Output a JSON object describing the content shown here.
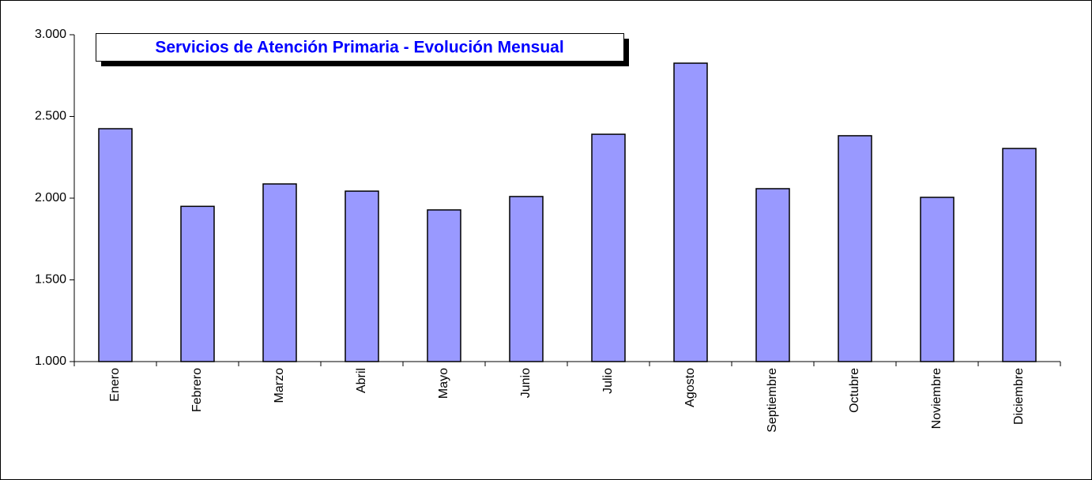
{
  "chart_data": {
    "type": "bar",
    "title": "Servicios de Atención Primaria - Evolución Mensual",
    "categories": [
      "Enero",
      "Febrero",
      "Marzo",
      "Abril",
      "Mayo",
      "Junio",
      "Julio",
      "Agosto",
      "Septiembre",
      "Octubre",
      "Noviembre",
      "Diciembre"
    ],
    "values": [
      2425,
      1950,
      2087,
      2043,
      1928,
      2010,
      2391,
      2826,
      2058,
      2382,
      2005,
      2304
    ],
    "color": "#9999ff",
    "ylim": [
      1000,
      3000
    ],
    "yticks": [
      {
        "value": 1000,
        "label": "1.000"
      },
      {
        "value": 1500,
        "label": "1.500"
      },
      {
        "value": 2000,
        "label": "2.000"
      },
      {
        "value": 2500,
        "label": "2.500"
      },
      {
        "value": 3000,
        "label": "3.000"
      }
    ],
    "grid": false
  }
}
